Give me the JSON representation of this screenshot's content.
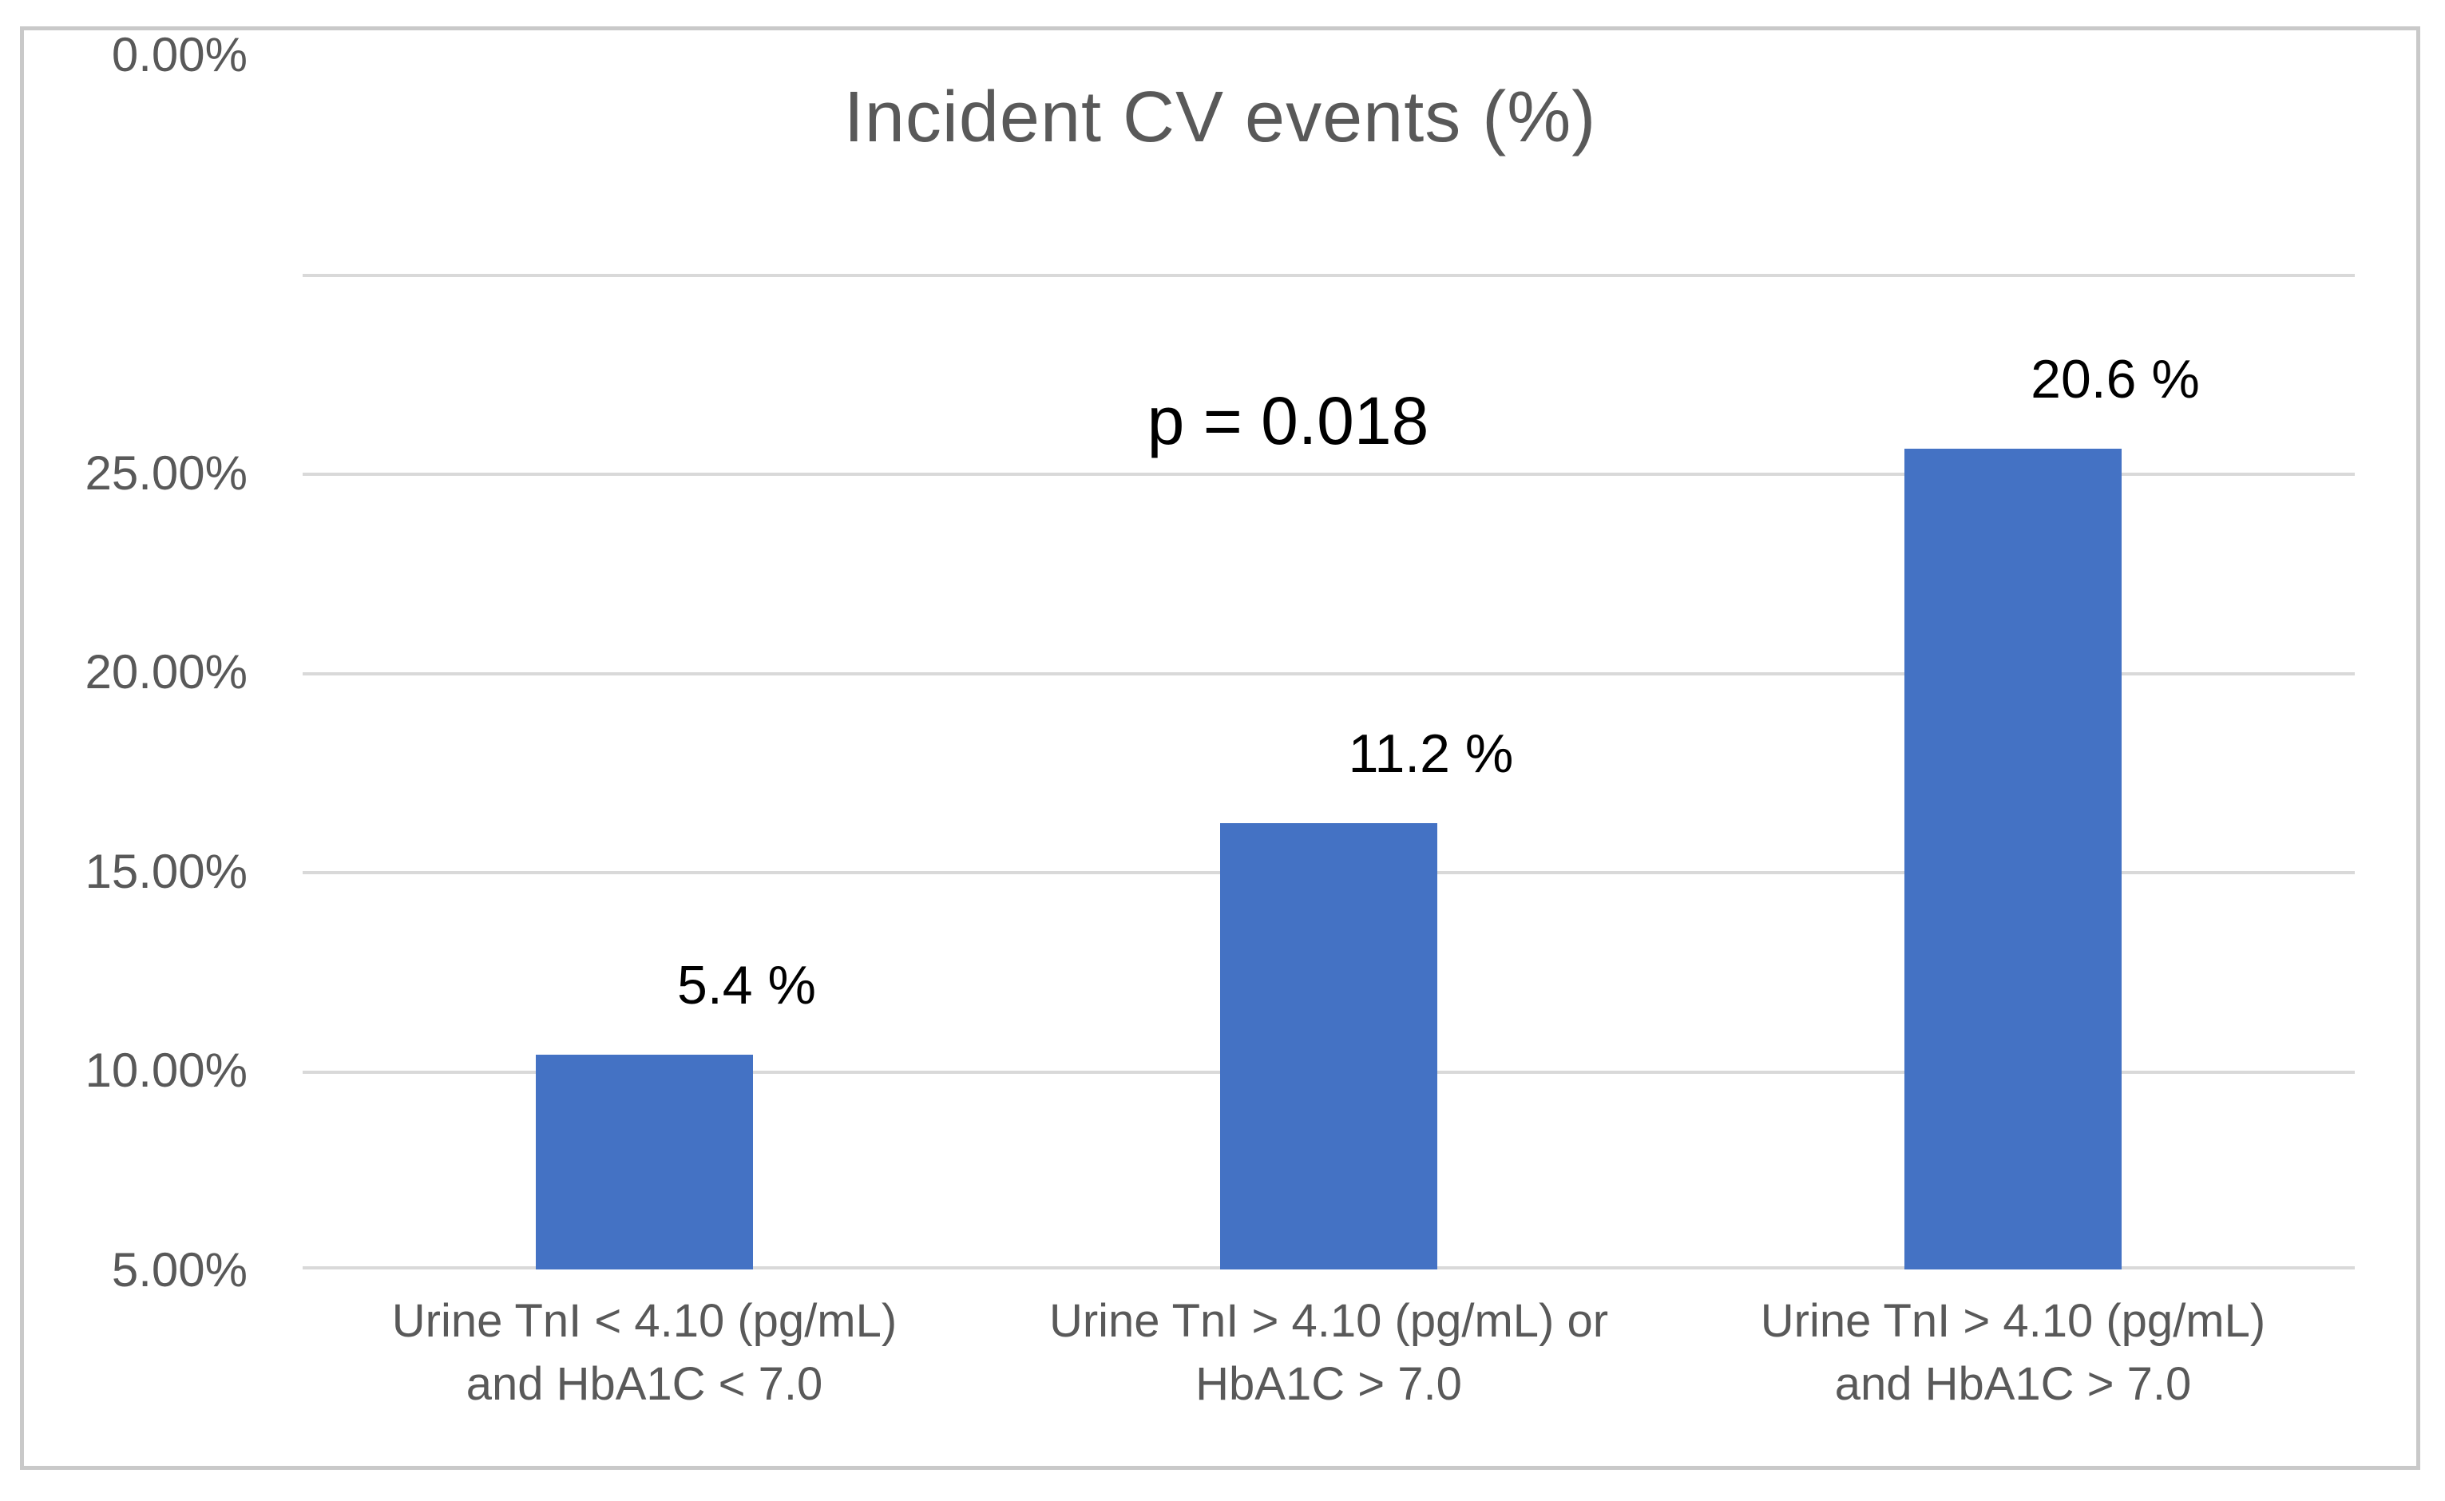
{
  "chart_data": {
    "type": "bar",
    "title": "Incident CV events (%)",
    "categories": [
      "Urine TnI < 4.10 (pg/mL) and HbA1C < 7.0",
      "Urine TnI > 4.10 (pg/mL) or HbA1C > 7.0",
      "Urine TnI > 4.10 (pg/mL) and HbA1C > 7.0"
    ],
    "categories_lines": [
      [
        "Urine TnI < 4.10 (pg/mL)",
        "and HbA1C < 7.0"
      ],
      [
        "Urine TnI > 4.10 (pg/mL) or",
        "HbA1C > 7.0"
      ],
      [
        "Urine TnI > 4.10 (pg/mL)",
        "and HbA1C > 7.0"
      ]
    ],
    "values": [
      5.4,
      11.2,
      20.6
    ],
    "value_labels": [
      "5.4 %",
      "11.2 %",
      "20.6 %"
    ],
    "annotation": "p = 0.018",
    "ylim": [
      0,
      25
    ],
    "ytick_labels": [
      "25.00%",
      "20.00%",
      "15.00%",
      "10.00%",
      "5.00%",
      "0.00%"
    ],
    "grid": true,
    "legend": "none",
    "bar_color": "#4472C4",
    "gridline_color": "#d9d9d9",
    "axis_text_color": "#595959",
    "label_text_color": "#000000"
  }
}
